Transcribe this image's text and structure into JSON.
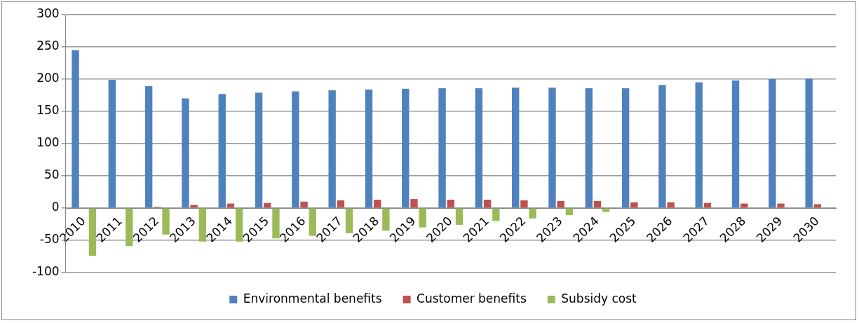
{
  "chart_data": {
    "type": "bar",
    "categories": [
      "2010",
      "2011",
      "2012",
      "2013",
      "2014",
      "2015",
      "2016",
      "2017",
      "2018",
      "2019",
      "2020",
      "2021",
      "2022",
      "2023",
      "2024",
      "2025",
      "2026",
      "2027",
      "2028",
      "2029",
      "2030"
    ],
    "series": [
      {
        "name": "Environmental benefits",
        "color": "#4f81bd",
        "values": [
          245,
          199,
          189,
          170,
          177,
          179,
          181,
          183,
          184,
          185,
          186,
          186,
          187,
          187,
          186,
          186,
          191,
          195,
          198,
          200,
          201
        ]
      },
      {
        "name": "Customer benefits",
        "color": "#c0504d",
        "values": [
          0,
          0,
          2,
          5,
          7,
          8,
          10,
          12,
          13,
          14,
          13,
          13,
          12,
          11,
          11,
          9,
          9,
          8,
          7,
          7,
          6
        ]
      },
      {
        "name": "Subsidy cost",
        "color": "#9bbb59",
        "values": [
          -74,
          -59,
          -41,
          -52,
          -52,
          -47,
          -43,
          -39,
          -35,
          -30,
          -26,
          -20,
          -16,
          -11,
          -6,
          0,
          0,
          0,
          0,
          0,
          0
        ]
      }
    ],
    "ylim": [
      -100,
      300
    ],
    "yticks": [
      -100,
      -50,
      0,
      50,
      100,
      150,
      200,
      250,
      300
    ],
    "grid": "y",
    "legend": "bottom"
  }
}
